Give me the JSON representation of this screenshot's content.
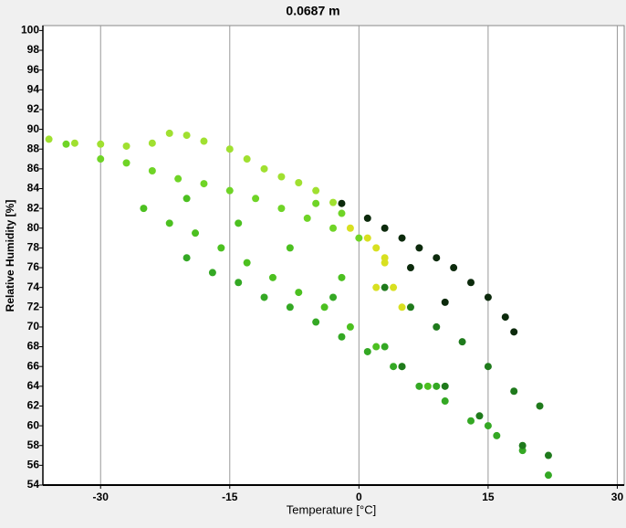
{
  "chart_data": {
    "type": "scatter",
    "title": "0.0687 m",
    "x_label": "Temperature [°C]",
    "y_label": "Relative Humidity [%]",
    "xlim": [
      -36.7,
      30.8
    ],
    "ylim": [
      54,
      100.5
    ],
    "xticks": [
      -30,
      -15,
      0,
      15,
      30
    ],
    "yticks": [
      54,
      56,
      58,
      60,
      62,
      64,
      66,
      68,
      70,
      72,
      74,
      76,
      78,
      80,
      82,
      84,
      86,
      88,
      90,
      92,
      94,
      96,
      98,
      100
    ],
    "grid": "x",
    "series": [
      {
        "color": "#a0e030",
        "x": [
          -36,
          -33,
          -30,
          -27,
          -24,
          -22,
          -20,
          -18,
          -15,
          -13,
          -11,
          -9,
          -7,
          -5,
          -3
        ],
        "values": [
          89,
          88.6,
          88.5,
          88.3,
          88.6,
          89.6,
          89.4,
          88.8,
          88,
          87,
          86,
          85.2,
          84.6,
          83.8,
          82.6
        ]
      },
      {
        "color": "#6fd426",
        "x": [
          -34,
          -30,
          -27,
          -24,
          -21,
          -18,
          -15,
          -12,
          -9,
          -6,
          -3,
          0,
          -2,
          -5
        ],
        "values": [
          88.5,
          87,
          86.6,
          85.8,
          85,
          84.5,
          83.8,
          83,
          82,
          81,
          80,
          79,
          81.5,
          82.5
        ]
      },
      {
        "color": "#4cc020",
        "x": [
          -25,
          -22,
          -19,
          -16,
          -13,
          -10,
          -7,
          -4,
          -1,
          2,
          5,
          8,
          -20,
          -14,
          -8,
          -2
        ],
        "values": [
          82,
          80.5,
          79.5,
          78,
          76.5,
          75,
          73.5,
          72,
          70,
          68,
          66,
          64,
          83,
          80.5,
          78,
          75
        ]
      },
      {
        "color": "#34a824",
        "x": [
          -20,
          -17,
          -14,
          -11,
          -8,
          -5,
          -2,
          1,
          4,
          7,
          10,
          13,
          16,
          19,
          22,
          -3,
          3,
          9,
          15
        ],
        "values": [
          77,
          75.5,
          74.5,
          73,
          72,
          70.5,
          69,
          67.5,
          66,
          64,
          62.5,
          60.5,
          59,
          57.5,
          55,
          73,
          68,
          64,
          60
        ]
      },
      {
        "color": "#1f7a1c",
        "x": [
          3,
          6,
          9,
          12,
          15,
          18,
          21,
          5,
          10,
          14,
          19,
          22
        ],
        "values": [
          74,
          72,
          70,
          68.5,
          66,
          63.5,
          62,
          66,
          64,
          61,
          58,
          57
        ]
      },
      {
        "color": "#0c2a0c",
        "x": [
          -2,
          1,
          3,
          5,
          7,
          9,
          11,
          13,
          15,
          17,
          18,
          6,
          10
        ],
        "values": [
          82.5,
          81,
          80,
          79,
          78,
          77,
          76,
          74.5,
          73,
          71,
          69.5,
          76,
          72.5
        ]
      },
      {
        "color": "#d8e020",
        "x": [
          -1,
          1,
          2,
          3,
          4,
          5,
          3,
          2
        ],
        "values": [
          80,
          79,
          78,
          76.5,
          74,
          72,
          77,
          74
        ]
      }
    ]
  }
}
